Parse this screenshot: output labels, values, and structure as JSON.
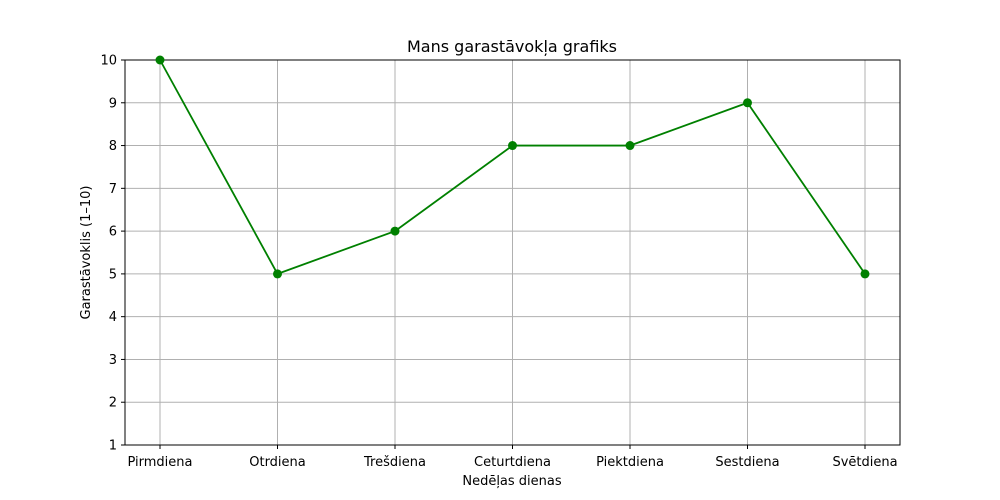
{
  "chart_data": {
    "type": "line",
    "title": "Mans garastāvokļa grafiks",
    "xlabel": "Nedēļas dienas",
    "ylabel": "Garastāvoklis (1–10)",
    "categories": [
      "Pirmdiena",
      "Otrdiena",
      "Trešdiena",
      "Ceturtdiena",
      "Piektdiena",
      "Sestdiena",
      "Svētdiena"
    ],
    "series": [
      {
        "values": [
          10,
          5,
          6,
          8,
          8,
          9,
          5
        ],
        "color": "#008000",
        "marker": "circle"
      }
    ],
    "ylim": [
      1,
      10
    ],
    "yticks": [
      1,
      2,
      3,
      4,
      5,
      6,
      7,
      8,
      9,
      10
    ],
    "grid": true
  }
}
